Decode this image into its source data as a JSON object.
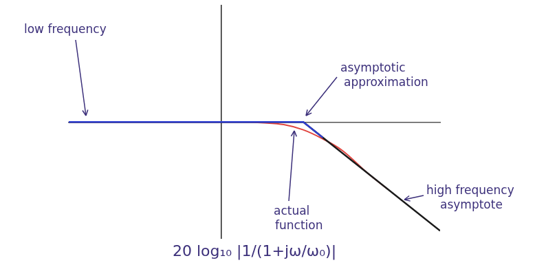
{
  "chart_data": {
    "type": "line",
    "title": "20 log₁₀ |1/(1+jω/ω₀)|",
    "xlim": [
      -3.6,
      2.1
    ],
    "ylim": [
      -45,
      45
    ],
    "tick_labels": false,
    "grid": false,
    "series": [
      {
        "color": "#e0443e",
        "x": [
          -3.6,
          -1,
          -0.6,
          -0.3,
          0,
          0.3,
          0.6,
          1,
          1.3
        ],
        "values": [
          0,
          0,
          -0.3,
          -1,
          -3,
          -6.5,
          -11,
          -20,
          -26
        ]
      },
      {
        "color": "#1a1a1a",
        "x": [
          -3.6,
          0,
          2.1
        ],
        "values": [
          0,
          0,
          -42
        ]
      },
      {
        "color": "#2f3fd0",
        "x": [
          -3.6,
          0,
          0.3
        ],
        "values": [
          0,
          0,
          -6
        ]
      }
    ],
    "annotations": [
      "low frequency",
      "asymptotic approximation",
      "actual function",
      "high frequency asymptote"
    ]
  }
}
